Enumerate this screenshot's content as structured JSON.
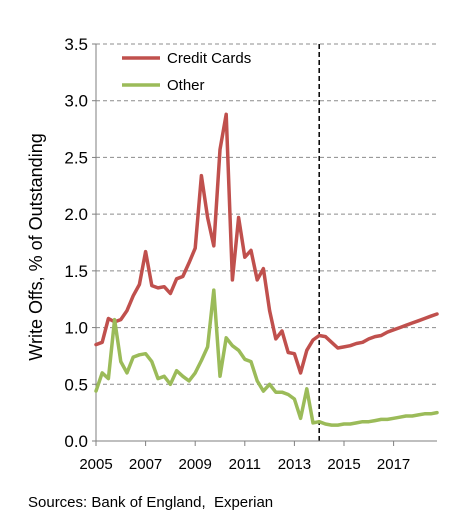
{
  "chart_data": {
    "type": "line",
    "title": "",
    "xlabel": "",
    "ylabel": "Write Offs, % of Outstanding",
    "ylim": [
      0,
      3.5
    ],
    "yticks": [
      "0.0",
      "0.5",
      "1.0",
      "1.5",
      "2.0",
      "2.5",
      "3.0",
      "3.5"
    ],
    "xlim": [
      2005,
      2018.75
    ],
    "xticks": [
      "2005",
      "2007",
      "2009",
      "2011",
      "2013",
      "2015",
      "2017"
    ],
    "grid": "horizontal dashed",
    "legend_position": "top-left",
    "projection_start": 2014.0,
    "x": [
      2005.0,
      2005.25,
      2005.5,
      2005.75,
      2006.0,
      2006.25,
      2006.5,
      2006.75,
      2007.0,
      2007.25,
      2007.5,
      2007.75,
      2008.0,
      2008.25,
      2008.5,
      2008.75,
      2009.0,
      2009.25,
      2009.5,
      2009.75,
      2010.0,
      2010.25,
      2010.5,
      2010.75,
      2011.0,
      2011.25,
      2011.5,
      2011.75,
      2012.0,
      2012.25,
      2012.5,
      2012.75,
      2013.0,
      2013.25,
      2013.5,
      2013.75,
      2014.0,
      2014.25,
      2014.5,
      2014.75,
      2015.0,
      2015.25,
      2015.5,
      2015.75,
      2016.0,
      2016.25,
      2016.5,
      2016.75,
      2017.0,
      2017.25,
      2017.5,
      2017.75,
      2018.0,
      2018.25,
      2018.5,
      2018.75
    ],
    "series": [
      {
        "name": "Credit Cards",
        "color": "#c0504d",
        "values": [
          0.85,
          0.87,
          1.08,
          1.05,
          1.07,
          1.15,
          1.28,
          1.38,
          1.67,
          1.37,
          1.35,
          1.36,
          1.3,
          1.43,
          1.45,
          1.57,
          1.7,
          2.34,
          1.97,
          1.72,
          2.57,
          2.88,
          1.42,
          1.97,
          1.62,
          1.68,
          1.42,
          1.52,
          1.15,
          0.9,
          0.97,
          0.78,
          0.77,
          0.6,
          0.8,
          0.89,
          0.93,
          0.92,
          0.87,
          0.82,
          0.83,
          0.84,
          0.86,
          0.87,
          0.9,
          0.92,
          0.93,
          0.96,
          0.98,
          1.0,
          1.02,
          1.04,
          1.06,
          1.08,
          1.1,
          1.12
        ]
      },
      {
        "name": "Other",
        "color": "#9bbb59",
        "values": [
          0.44,
          0.6,
          0.55,
          1.07,
          0.7,
          0.6,
          0.74,
          0.76,
          0.77,
          0.7,
          0.55,
          0.57,
          0.5,
          0.62,
          0.57,
          0.53,
          0.6,
          0.71,
          0.83,
          1.33,
          0.57,
          0.91,
          0.84,
          0.8,
          0.72,
          0.7,
          0.53,
          0.44,
          0.5,
          0.43,
          0.43,
          0.41,
          0.37,
          0.2,
          0.46,
          0.16,
          0.17,
          0.15,
          0.14,
          0.14,
          0.15,
          0.15,
          0.16,
          0.17,
          0.17,
          0.18,
          0.19,
          0.19,
          0.2,
          0.21,
          0.22,
          0.22,
          0.23,
          0.24,
          0.24,
          0.25
        ]
      }
    ]
  },
  "footer": {
    "source": "Sources: Bank of England,  Experian"
  }
}
